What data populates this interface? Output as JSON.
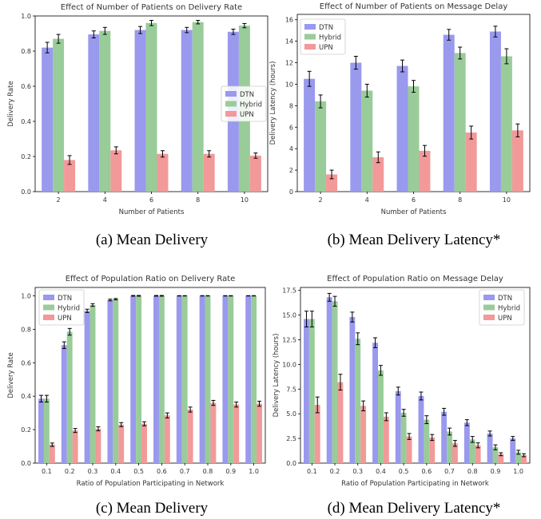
{
  "colors": {
    "DTN": "#9999ee",
    "Hybrid": "#99cc99",
    "UPN": "#f29999",
    "error": "#000000"
  },
  "chart_data": [
    {
      "type": "bar",
      "title": "Effect of Number of Patients on Delivery Rate",
      "xlabel": "Number of Patients",
      "ylabel": "Delivery Rate",
      "categories": [
        "2",
        "4",
        "6",
        "8",
        "10"
      ],
      "ylim": [
        0,
        1.0
      ],
      "yticks": [
        "0.0",
        "0.2",
        "0.4",
        "0.6",
        "0.8",
        "1.0"
      ],
      "legend": "center-right",
      "grid": false,
      "series": [
        {
          "name": "DTN",
          "values": [
            0.82,
            0.895,
            0.92,
            0.92,
            0.91
          ],
          "errors": [
            0.03,
            0.02,
            0.02,
            0.015,
            0.015
          ]
        },
        {
          "name": "Hybrid",
          "values": [
            0.87,
            0.915,
            0.96,
            0.965,
            0.945
          ],
          "errors": [
            0.025,
            0.02,
            0.015,
            0.01,
            0.012
          ]
        },
        {
          "name": "UPN",
          "values": [
            0.18,
            0.235,
            0.215,
            0.215,
            0.205
          ],
          "errors": [
            0.025,
            0.02,
            0.018,
            0.018,
            0.015
          ]
        }
      ],
      "caption": "(a) Mean Delivery"
    },
    {
      "type": "bar",
      "title": "Effect of Number of Patients on Message Delay",
      "xlabel": "Number of Patients",
      "ylabel": "Delivery Latency (hours)",
      "categories": [
        "2",
        "4",
        "6",
        "8",
        "10"
      ],
      "ylim": [
        0,
        16.5
      ],
      "yticks": [
        "0",
        "2",
        "4",
        "6",
        "8",
        "10",
        "12",
        "14",
        "16"
      ],
      "legend": "top-left",
      "grid": false,
      "series": [
        {
          "name": "DTN",
          "values": [
            10.5,
            12.0,
            11.7,
            14.6,
            14.9
          ],
          "errors": [
            0.7,
            0.6,
            0.55,
            0.5,
            0.5
          ]
        },
        {
          "name": "Hybrid",
          "values": [
            8.4,
            9.4,
            9.8,
            12.9,
            12.6
          ],
          "errors": [
            0.6,
            0.6,
            0.55,
            0.55,
            0.7
          ]
        },
        {
          "name": "UPN",
          "values": [
            1.6,
            3.2,
            3.8,
            5.5,
            5.7
          ],
          "errors": [
            0.4,
            0.5,
            0.5,
            0.6,
            0.6
          ]
        }
      ],
      "caption": "(b) Mean Delivery Latency*"
    },
    {
      "type": "bar",
      "title": "Effect of Population Ratio on Delivery Rate",
      "xlabel": "Ratio of Population Participating in Network",
      "ylabel": "Delivery Rate",
      "categories": [
        "0.1",
        "0.2",
        "0.3",
        "0.4",
        "0.5",
        "0.6",
        "0.7",
        "0.8",
        "0.9",
        "1.0"
      ],
      "ylim": [
        0,
        1.05
      ],
      "yticks": [
        "0.0",
        "0.2",
        "0.4",
        "0.6",
        "0.8",
        "1.0"
      ],
      "legend": "top-left",
      "grid": false,
      "series": [
        {
          "name": "DTN",
          "values": [
            0.385,
            0.705,
            0.91,
            0.975,
            1.0,
            1.0,
            1.0,
            1.0,
            1.0,
            1.0
          ],
          "errors": [
            0.02,
            0.02,
            0.01,
            0.005,
            0.002,
            0.002,
            0.001,
            0.001,
            0.001,
            0.001
          ]
        },
        {
          "name": "Hybrid",
          "values": [
            0.385,
            0.785,
            0.945,
            0.98,
            1.0,
            1.0,
            1.0,
            1.0,
            1.0,
            1.0
          ],
          "errors": [
            0.02,
            0.02,
            0.008,
            0.004,
            0.002,
            0.002,
            0.001,
            0.001,
            0.001,
            0.001
          ]
        },
        {
          "name": "UPN",
          "values": [
            0.11,
            0.195,
            0.205,
            0.23,
            0.235,
            0.285,
            0.32,
            0.36,
            0.35,
            0.355
          ],
          "errors": [
            0.01,
            0.012,
            0.012,
            0.012,
            0.012,
            0.015,
            0.015,
            0.015,
            0.015,
            0.015
          ]
        }
      ],
      "caption": "(c) Mean Delivery"
    },
    {
      "type": "bar",
      "title": "Effect of Population Ratio on Message Delay",
      "xlabel": "Ratio of Population Participating in Network",
      "ylabel": "Delivery Latency (hours)",
      "categories": [
        "0.1",
        "0.2",
        "0.3",
        "0.4",
        "0.5",
        "0.6",
        "0.7",
        "0.8",
        "0.9",
        "1.0"
      ],
      "ylim": [
        0,
        17.8
      ],
      "yticks": [
        "0.0",
        "2.5",
        "5.0",
        "7.5",
        "10.0",
        "12.5",
        "15.0",
        "17.5"
      ],
      "legend": "top-right",
      "grid": false,
      "series": [
        {
          "name": "DTN",
          "values": [
            14.6,
            16.8,
            14.8,
            12.2,
            7.3,
            6.8,
            5.2,
            4.1,
            3.0,
            2.5
          ],
          "errors": [
            0.8,
            0.4,
            0.5,
            0.5,
            0.4,
            0.4,
            0.35,
            0.3,
            0.25,
            0.2
          ]
        },
        {
          "name": "Hybrid",
          "values": [
            14.6,
            16.4,
            12.6,
            9.4,
            5.1,
            4.4,
            3.2,
            2.4,
            1.6,
            1.1
          ],
          "errors": [
            0.8,
            0.5,
            0.6,
            0.5,
            0.35,
            0.4,
            0.35,
            0.3,
            0.25,
            0.2
          ]
        },
        {
          "name": "UPN",
          "values": [
            5.9,
            8.2,
            5.8,
            4.7,
            2.7,
            2.6,
            2.0,
            1.8,
            0.9,
            0.8
          ],
          "errors": [
            0.8,
            0.8,
            0.5,
            0.4,
            0.3,
            0.3,
            0.3,
            0.25,
            0.15,
            0.15
          ]
        }
      ],
      "caption": "(d) Mean Delivery Latency*"
    }
  ]
}
